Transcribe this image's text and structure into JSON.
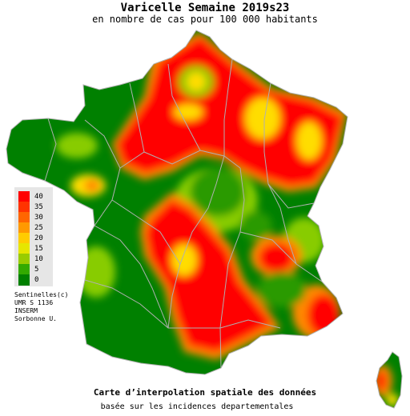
{
  "header": {
    "title": "Varicelle Semaine 2019s23",
    "subtitle": "en nombre de cas pour 100 000 habitants"
  },
  "legend": {
    "items": [
      {
        "label": "40",
        "color": "#ff0000"
      },
      {
        "label": "35",
        "color": "#ff3300"
      },
      {
        "label": "30",
        "color": "#ff6600"
      },
      {
        "label": "25",
        "color": "#ff9900"
      },
      {
        "label": "20",
        "color": "#ffcc00"
      },
      {
        "label": "15",
        "color": "#e6e600"
      },
      {
        "label": "10",
        "color": "#99cc00"
      },
      {
        "label": "5",
        "color": "#33aa00"
      },
      {
        "label": "0",
        "color": "#008000"
      }
    ]
  },
  "credits": [
    "Sentinelles(c)",
    "UMR S 1136",
    "INSERM",
    "Sorbonne U."
  ],
  "footer": {
    "line1": "Carte d’interpolation spatiale des données",
    "line2": "basée sur les incidences departementales"
  },
  "colors": {
    "red": "#ff0000",
    "orange": "#ff8800",
    "yellow": "#ffdd00",
    "lightgreen": "#88cc00",
    "green": "#2a9a00",
    "darkgreen": "#008000",
    "border": "#b0b0b0"
  }
}
